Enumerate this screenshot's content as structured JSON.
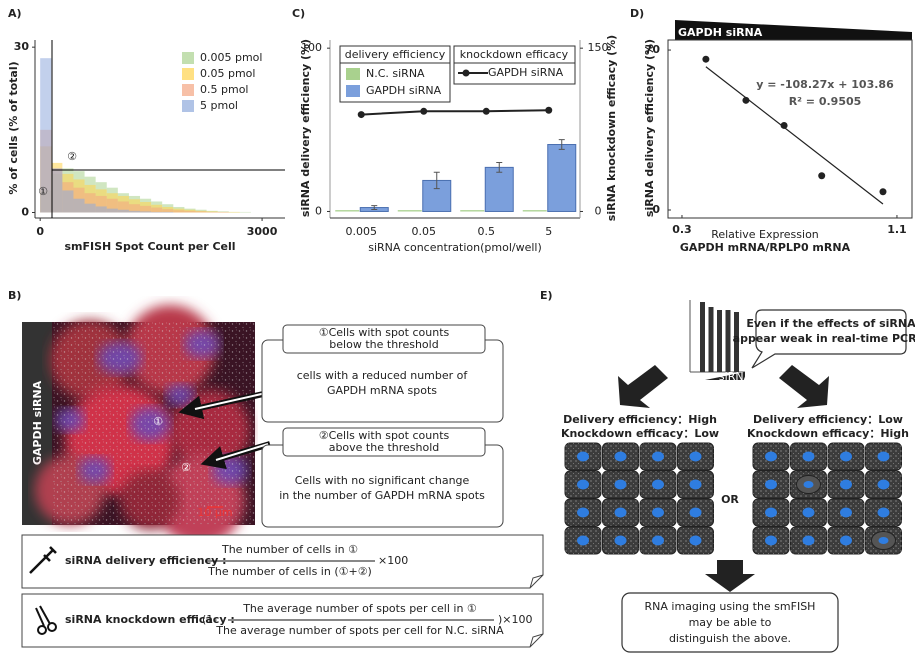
{
  "chart_data": [
    {
      "type": "histogram",
      "panel_label": "A)",
      "x_label": "smFISH Spot Count per Cell",
      "y_label": "% of cells (% of total)",
      "bins": [
        0,
        150,
        300,
        450,
        600,
        750,
        900,
        1050,
        1200,
        1350,
        1500,
        1650,
        1800,
        1950,
        2100,
        2250,
        2400,
        2550,
        2700,
        2850,
        3000
      ],
      "series": [
        {
          "name": "0.005 pmol",
          "color": "#a9d18e",
          "values": [
            4,
            7,
            8,
            7.5,
            6.5,
            5.5,
            4.5,
            3.5,
            3,
            2.5,
            2,
            1.5,
            1,
            0.7,
            0.5,
            0.3,
            0.2,
            0.1,
            0.1,
            0
          ]
        },
        {
          "name": "0.05 pmol",
          "color": "#ffd34d",
          "values": [
            12,
            9,
            7,
            6,
            5,
            4.2,
            3.5,
            3,
            2.4,
            1.9,
            1.4,
            1,
            0.7,
            0.5,
            0.3,
            0.2,
            0.1,
            0.1,
            0,
            0
          ]
        },
        {
          "name": "0.5 pmol",
          "color": "#f4a582",
          "values": [
            15,
            8,
            5.5,
            4.5,
            3.5,
            3,
            2.5,
            2,
            1.5,
            1.2,
            0.9,
            0.6,
            0.4,
            0.3,
            0.2,
            0.1,
            0.1,
            0,
            0,
            0
          ]
        },
        {
          "name": "5 pmol",
          "color": "#8faadc",
          "values": [
            28,
            8,
            4,
            2.5,
            1.6,
            1.1,
            0.7,
            0.5,
            0.3,
            0.2,
            0.1,
            0.1,
            0,
            0,
            0,
            0,
            0,
            0,
            0,
            0
          ]
        }
      ],
      "xlim": [
        -70,
        3310
      ],
      "ylim": [
        -1,
        31.3
      ],
      "xticks": [
        0,
        3000
      ],
      "yticks": [
        0,
        30
      ],
      "legend": "upper right",
      "annotations": [
        "①",
        "②"
      ]
    },
    {
      "type": "bar",
      "panel_label": "C)",
      "x_label": "siRNA concentration(pmol/well)",
      "y_label": "siRNA delivery efficiency (%)",
      "y2_label": "siRNA knockdown efficacy (%)",
      "legend_titles": [
        "delivery efficiency",
        "knockdown efficacy"
      ],
      "categories": [
        "0.005",
        "0.05",
        "0.5",
        "5"
      ],
      "series": [
        {
          "name": "N.C. siRNA",
          "color": "#a9d18e",
          "values": [
            0.8,
            0.8,
            0.8,
            0.8
          ]
        },
        {
          "name": "GAPDH siRNA",
          "color": "#7b9fdc",
          "values": [
            2.4,
            19,
            27,
            41
          ],
          "errors": [
            1.2,
            5,
            3,
            3
          ]
        },
        {
          "name": "GAPDH siRNA",
          "type": "line",
          "axis": "y2",
          "color": "#222",
          "values": [
            89,
            92,
            92,
            93
          ]
        }
      ],
      "ylim": [
        -4,
        105
      ],
      "yticks": [
        0,
        100
      ],
      "y2lim": [
        -6,
        157.5
      ],
      "y2ticks": [
        0,
        150
      ]
    },
    {
      "type": "scatter",
      "panel_label": "D)",
      "title": "GAPDH siRNA",
      "x_label": "Relative Expression",
      "x_sublabel": "GAPDH mRNA/RPLP0 mRNA",
      "y_label": "siRNA delivery efficiency (%)",
      "x": [
        0.389,
        0.538,
        0.68,
        0.82,
        1.048
      ],
      "values": [
        66,
        48,
        37,
        15,
        8
      ],
      "color": "#222",
      "annotations": [
        "y = -108.27x + 103.86",
        "R² = 0.9505"
      ],
      "xlim": [
        0.248,
        1.156
      ],
      "ylim": [
        -3.5,
        74.4
      ],
      "xticks": [
        0.3,
        1.1
      ],
      "yticks": [
        0,
        70
      ]
    }
  ],
  "panel_b": {
    "panel_label": "B)",
    "image_label": "GAPDH siRNA",
    "scale_bar": "10 μm",
    "markers": [
      "①",
      "②"
    ],
    "callouts": [
      {
        "heading": [
          "①Cells with spot counts",
          "below the threshold"
        ],
        "body": [
          "cells with a reduced number of",
          "GAPDH mRNA spots"
        ]
      },
      {
        "heading": [
          "②Cells with spot counts",
          "above the threshold"
        ],
        "body": [
          "Cells with no significant change",
          "in the number of GAPDH mRNA spots"
        ]
      }
    ],
    "formulas": [
      {
        "name": "siRNA delivery efficiency :",
        "numerator": "The number of cells in ①",
        "denominator": "The number of cells in (①+②)",
        "suffix": "×100"
      },
      {
        "name": "siRNA knockdown efficacy :",
        "prefix": "(1-",
        "numerator": "The average number of spots per cell in ①",
        "denominator": "The average number of spots per cell for N.C. siRNA",
        "suffix": ")×100"
      }
    ]
  },
  "panel_e": {
    "panel_label": "E)",
    "chart_label": "siRNA",
    "bubble": [
      "Even if the effects of siRNA",
      "appear weak in real-time PCR..."
    ],
    "cases": [
      {
        "lines": [
          "Delivery efficiency：High",
          "Knockdown efficacy：Low"
        ]
      },
      {
        "lines": [
          "Delivery efficiency：Low",
          "Knockdown efficacy：High"
        ]
      }
    ],
    "separator": "OR",
    "conclusion": [
      "RNA imaging using the smFISH",
      "may be able to",
      "distinguish the above."
    ]
  }
}
